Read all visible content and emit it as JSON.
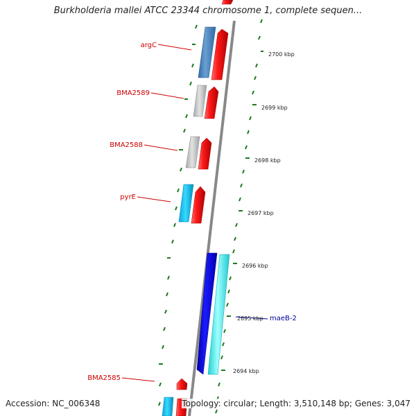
{
  "title": "Burkholderia mallei ATCC 23344 chromosome 1, complete sequen...",
  "footer": {
    "accession": "Accession: NC_006348",
    "summary": "Topology: circular; Length: 3,510,148 bp; Genes: 3,047"
  },
  "colors": {
    "backbone": "#888888",
    "ticks": "#1a7a1a",
    "forward_gene": "#ee1111",
    "label_red": "#cc0000",
    "label_blue": "#000099"
  },
  "position_labels": [
    "2700 kbp",
    "2699 kbp",
    "2698 kbp",
    "2697 kbp",
    "2696 kbp",
    "2695 kbp",
    "2694 kbp"
  ],
  "gene_labels": [
    "argC",
    "BMA2589",
    "BMA2588",
    "pyrE",
    "maeB-2",
    "BMA2585"
  ]
}
